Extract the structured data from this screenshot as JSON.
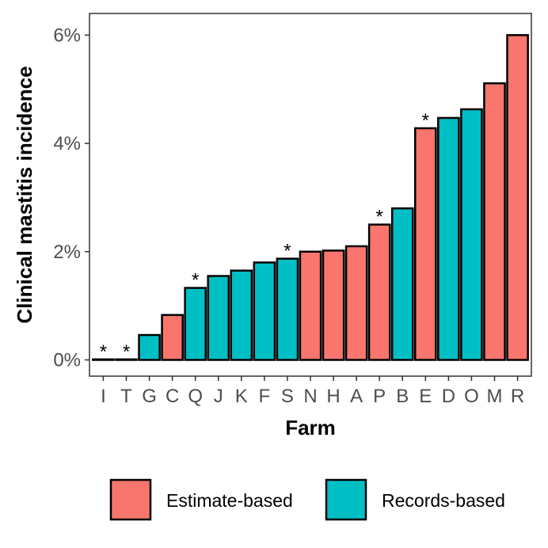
{
  "chart_data": {
    "type": "bar",
    "xlabel": "Farm",
    "ylabel": "Clinical mastitis incidence",
    "ylim": [
      -0.003,
      0.064
    ],
    "yticks": [
      0,
      0.02,
      0.04,
      0.06
    ],
    "ytick_labels": [
      "0%",
      "2%",
      "4%",
      "6%"
    ],
    "categories": [
      "I",
      "T",
      "G",
      "C",
      "Q",
      "J",
      "K",
      "F",
      "S",
      "N",
      "H",
      "A",
      "P",
      "B",
      "E",
      "D",
      "O",
      "M",
      "R"
    ],
    "values": [
      0.0001,
      0.0001,
      0.0046,
      0.0083,
      0.0133,
      0.0155,
      0.0165,
      0.018,
      0.0187,
      0.02,
      0.0202,
      0.021,
      0.025,
      0.028,
      0.0428,
      0.0447,
      0.0463,
      0.0511,
      0.06
    ],
    "groups": [
      "Estimate-based",
      "Estimate-based",
      "Records-based",
      "Estimate-based",
      "Records-based",
      "Records-based",
      "Records-based",
      "Records-based",
      "Records-based",
      "Estimate-based",
      "Estimate-based",
      "Estimate-based",
      "Estimate-based",
      "Records-based",
      "Estimate-based",
      "Records-based",
      "Records-based",
      "Estimate-based",
      "Estimate-based"
    ],
    "flagged": [
      "I",
      "T",
      "Q",
      "S",
      "P",
      "E"
    ],
    "flag_symbol": "*",
    "legend_position": "bottom",
    "series": [
      {
        "name": "Estimate-based",
        "color": "#F8766D"
      },
      {
        "name": "Records-based",
        "color": "#00BFC4"
      }
    ]
  }
}
